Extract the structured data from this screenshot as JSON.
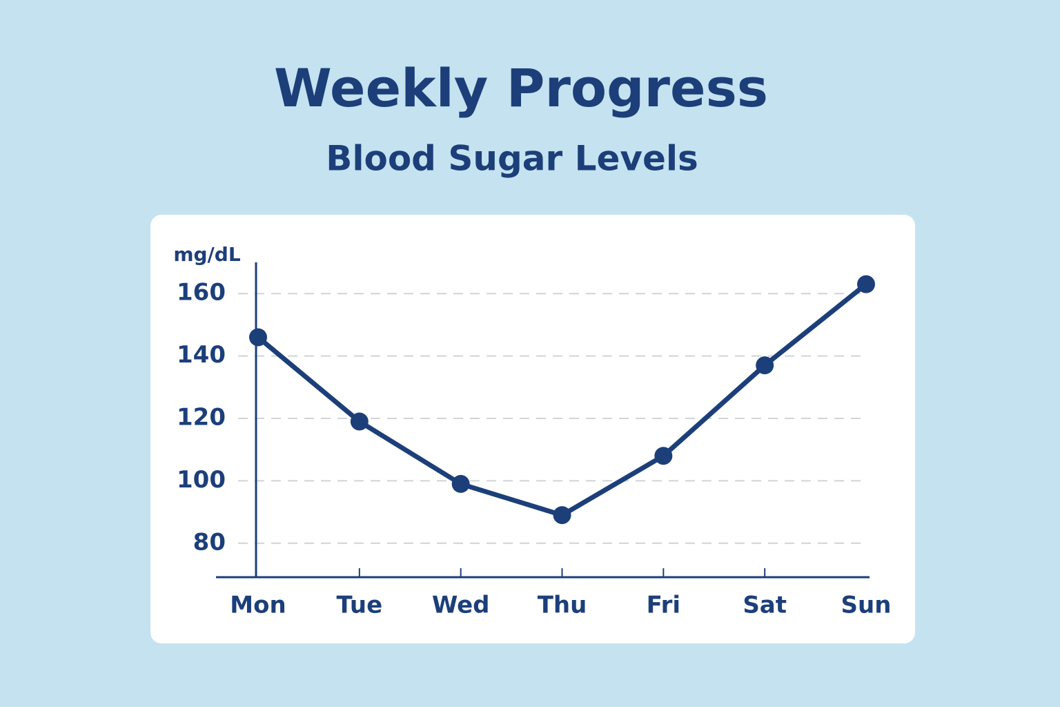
{
  "chart_data": {
    "type": "line",
    "title": "Weekly Progress",
    "subtitle": "Blood Sugar Levels",
    "y_label": "mg/dL",
    "categories": [
      "Mon",
      "Tue",
      "Wed",
      "Thu",
      "Fri",
      "Sat",
      "Sun"
    ],
    "values": [
      146,
      119,
      99,
      89,
      108,
      137,
      163
    ],
    "color": "#1c3f7a",
    "ylim": [
      70,
      170
    ],
    "yticks": [
      80,
      100,
      120,
      140,
      160
    ],
    "grid": true
  }
}
